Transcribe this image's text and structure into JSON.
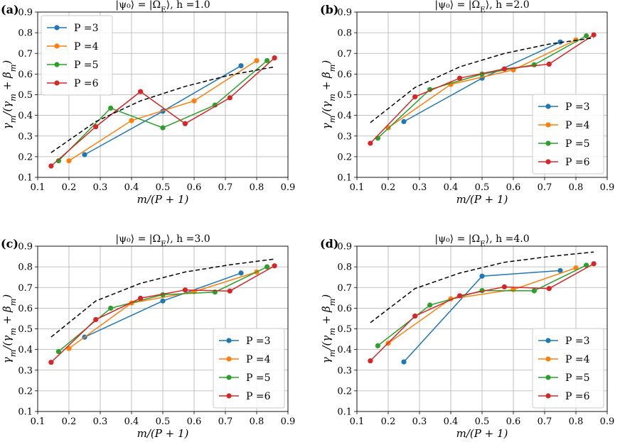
{
  "chart_data": [
    {
      "type": "line",
      "panel_label": "(a)",
      "title": "|ψ₀⟩ = |Ω_E⟩, h =1.0",
      "xlabel": "m/(P + 1)",
      "ylabel": "γ_m/(γ_m + β_m)",
      "xlim": [
        0.1,
        0.9
      ],
      "ylim": [
        0.1,
        0.9
      ],
      "xticks": [
        "0.1",
        "0.2",
        "0.3",
        "0.4",
        "0.5",
        "0.6",
        "0.7",
        "0.8",
        "0.9"
      ],
      "yticks": [
        "0.1",
        "0.2",
        "0.3",
        "0.4",
        "0.5",
        "0.6",
        "0.7",
        "0.8",
        "0.9"
      ],
      "grid": true,
      "legend_position": "top-left",
      "series": [
        {
          "name": "P =3",
          "color": "#1f77b4",
          "x": [
            0.25,
            0.5,
            0.75
          ],
          "y": [
            0.21,
            0.42,
            0.64
          ]
        },
        {
          "name": "P =4",
          "color": "#ff7f0e",
          "x": [
            0.2,
            0.4,
            0.6,
            0.8
          ],
          "y": [
            0.18,
            0.375,
            0.47,
            0.665
          ]
        },
        {
          "name": "P =5",
          "color": "#2ca02c",
          "x": [
            0.1667,
            0.3333,
            0.5,
            0.6667,
            0.8333
          ],
          "y": [
            0.18,
            0.435,
            0.34,
            0.45,
            0.665
          ]
        },
        {
          "name": "P =6",
          "color": "#d62728",
          "x": [
            0.1429,
            0.2857,
            0.4286,
            0.5714,
            0.7143,
            0.8571
          ],
          "y": [
            0.155,
            0.345,
            0.515,
            0.36,
            0.485,
            0.678
          ]
        },
        {
          "color": "#000000",
          "dashed": true,
          "marker": false,
          "x": [
            0.1429,
            0.2857,
            0.4286,
            0.5714,
            0.7143,
            0.8571
          ],
          "y": [
            0.22,
            0.37,
            0.47,
            0.54,
            0.595,
            0.635
          ]
        }
      ]
    },
    {
      "type": "line",
      "panel_label": "(b)",
      "title": "|ψ₀⟩ = |Ω_E⟩, h =2.0",
      "xlabel": "m/(P + 1)",
      "ylabel": "γ_m/(γ_m + β_m)",
      "xlim": [
        0.1,
        0.9
      ],
      "ylim": [
        0.1,
        0.9
      ],
      "xticks": [
        "0.1",
        "0.2",
        "0.3",
        "0.4",
        "0.5",
        "0.6",
        "0.7",
        "0.8",
        "0.9"
      ],
      "yticks": [
        "0.1",
        "0.2",
        "0.3",
        "0.4",
        "0.5",
        "0.6",
        "0.7",
        "0.8",
        "0.9"
      ],
      "grid": true,
      "legend_position": "lower-right",
      "series": [
        {
          "name": "P =3",
          "color": "#1f77b4",
          "x": [
            0.25,
            0.5,
            0.75
          ],
          "y": [
            0.37,
            0.58,
            0.755
          ]
        },
        {
          "name": "P =4",
          "color": "#ff7f0e",
          "x": [
            0.2,
            0.4,
            0.6,
            0.8
          ],
          "y": [
            0.34,
            0.55,
            0.62,
            0.765
          ]
        },
        {
          "name": "P =5",
          "color": "#2ca02c",
          "x": [
            0.1667,
            0.3333,
            0.5,
            0.6667,
            0.8333
          ],
          "y": [
            0.29,
            0.525,
            0.6,
            0.645,
            0.785
          ]
        },
        {
          "name": "P =6",
          "color": "#d62728",
          "x": [
            0.1429,
            0.2857,
            0.4286,
            0.5714,
            0.7143,
            0.8571
          ],
          "y": [
            0.265,
            0.49,
            0.58,
            0.625,
            0.648,
            0.79
          ]
        },
        {
          "color": "#000000",
          "dashed": true,
          "marker": false,
          "x": [
            0.1429,
            0.2857,
            0.4286,
            0.5714,
            0.7143,
            0.8571
          ],
          "y": [
            0.365,
            0.535,
            0.635,
            0.7,
            0.745,
            0.775
          ]
        }
      ]
    },
    {
      "type": "line",
      "panel_label": "(c)",
      "title": "|ψ₀⟩ = |Ω_E⟩, h =3.0",
      "xlabel": "m/(P + 1)",
      "ylabel": "γ_m/(γ_m + β_m)",
      "xlim": [
        0.1,
        0.9
      ],
      "ylim": [
        0.1,
        0.9
      ],
      "xticks": [
        "0.1",
        "0.2",
        "0.3",
        "0.4",
        "0.5",
        "0.6",
        "0.7",
        "0.8",
        "0.9"
      ],
      "yticks": [
        "0.1",
        "0.2",
        "0.3",
        "0.4",
        "0.5",
        "0.6",
        "0.7",
        "0.8",
        "0.9"
      ],
      "grid": true,
      "legend_position": "lower-right",
      "series": [
        {
          "name": "P =3",
          "color": "#1f77b4",
          "x": [
            0.25,
            0.5,
            0.75
          ],
          "y": [
            0.46,
            0.635,
            0.77
          ]
        },
        {
          "name": "P =4",
          "color": "#ff7f0e",
          "x": [
            0.2,
            0.4,
            0.6,
            0.8
          ],
          "y": [
            0.405,
            0.625,
            0.68,
            0.775
          ]
        },
        {
          "name": "P =5",
          "color": "#2ca02c",
          "x": [
            0.1667,
            0.3333,
            0.5,
            0.6667,
            0.8333
          ],
          "y": [
            0.39,
            0.6,
            0.665,
            0.678,
            0.8
          ]
        },
        {
          "name": "P =6",
          "color": "#d62728",
          "x": [
            0.1429,
            0.2857,
            0.4286,
            0.5714,
            0.7143,
            0.8571
          ],
          "y": [
            0.338,
            0.545,
            0.648,
            0.688,
            0.683,
            0.805
          ]
        },
        {
          "color": "#000000",
          "dashed": true,
          "marker": false,
          "x": [
            0.1429,
            0.2857,
            0.4286,
            0.5714,
            0.7143,
            0.8571
          ],
          "y": [
            0.46,
            0.635,
            0.72,
            0.775,
            0.81,
            0.838
          ]
        }
      ]
    },
    {
      "type": "line",
      "panel_label": "(d)",
      "title": "|ψ₀⟩ = |Ω_E⟩, h =4.0",
      "xlabel": "m/(P + 1)",
      "ylabel": "γ_m/(γ_m + β_m)",
      "xlim": [
        0.1,
        0.9
      ],
      "ylim": [
        0.1,
        0.9
      ],
      "xticks": [
        "0.1",
        "0.2",
        "0.3",
        "0.4",
        "0.5",
        "0.6",
        "0.7",
        "0.8",
        "0.9"
      ],
      "yticks": [
        "0.1",
        "0.2",
        "0.3",
        "0.4",
        "0.5",
        "0.6",
        "0.7",
        "0.8",
        "0.9"
      ],
      "grid": true,
      "legend_position": "lower-right",
      "series": [
        {
          "name": "P =3",
          "color": "#1f77b4",
          "x": [
            0.25,
            0.5,
            0.75
          ],
          "y": [
            0.34,
            0.755,
            0.782
          ]
        },
        {
          "name": "P =4",
          "color": "#ff7f0e",
          "x": [
            0.2,
            0.4,
            0.6,
            0.8
          ],
          "y": [
            0.43,
            0.645,
            0.69,
            0.795
          ]
        },
        {
          "name": "P =5",
          "color": "#2ca02c",
          "x": [
            0.1667,
            0.3333,
            0.5,
            0.6667,
            0.8333
          ],
          "y": [
            0.418,
            0.615,
            0.685,
            0.684,
            0.808
          ]
        },
        {
          "name": "P =6",
          "color": "#d62728",
          "x": [
            0.1429,
            0.2857,
            0.4286,
            0.5714,
            0.7143,
            0.8571
          ],
          "y": [
            0.345,
            0.562,
            0.66,
            0.703,
            0.695,
            0.815
          ]
        },
        {
          "color": "#000000",
          "dashed": true,
          "marker": false,
          "x": [
            0.1429,
            0.2857,
            0.4286,
            0.5714,
            0.7143,
            0.8571
          ],
          "y": [
            0.53,
            0.695,
            0.77,
            0.822,
            0.85,
            0.872
          ]
        }
      ]
    }
  ]
}
